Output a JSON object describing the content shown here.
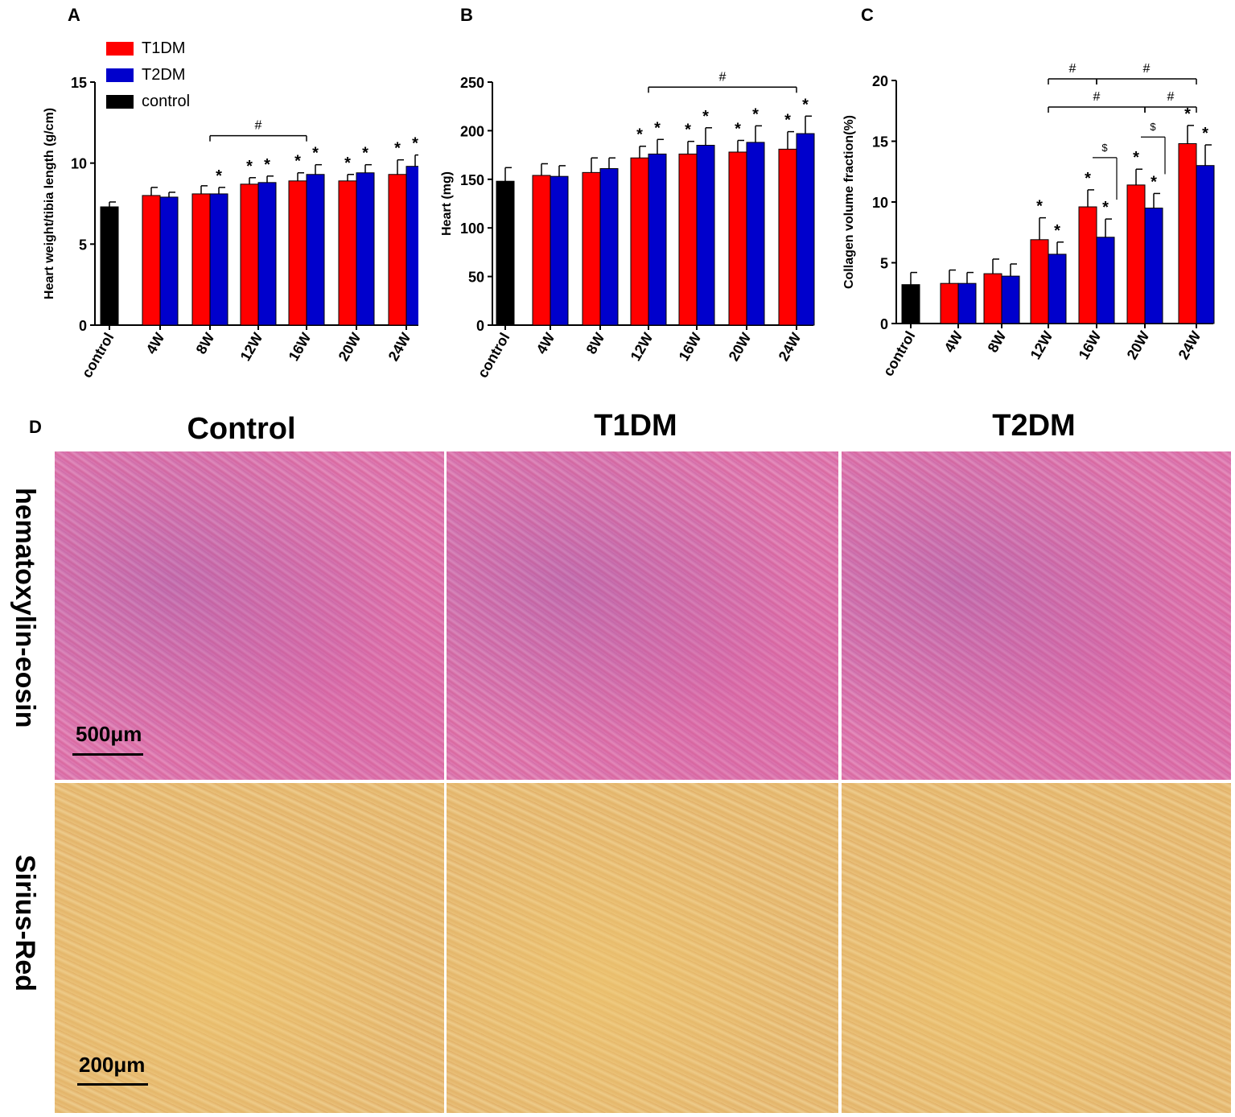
{
  "panel_labels": [
    "A",
    "B",
    "C",
    "D"
  ],
  "legend": [
    {
      "label": "T1DM",
      "color": "#ff0000"
    },
    {
      "label": "T2DM",
      "color": "#0000cc"
    },
    {
      "label": "control",
      "color": "#000000"
    }
  ],
  "chart_data": [
    {
      "type": "bar",
      "panel": "A",
      "categories": [
        "control",
        "4W",
        "8W",
        "12W",
        "16W",
        "20W",
        "24W"
      ],
      "ylabel": "Heart weight/tibia length (g/cm)",
      "ylim": [
        0,
        15
      ],
      "yticks": [
        "0",
        "5",
        "10",
        "15"
      ],
      "control": {
        "value": 7.3,
        "error": 0.3
      },
      "series": [
        {
          "name": "T1DM",
          "color": "#ff0000",
          "values": [
            null,
            8.0,
            8.1,
            8.7,
            8.9,
            8.9,
            9.3
          ],
          "errors": [
            null,
            0.5,
            0.5,
            0.4,
            0.5,
            0.4,
            0.9
          ]
        },
        {
          "name": "T2DM",
          "color": "#0000cc",
          "values": [
            null,
            7.9,
            8.1,
            8.8,
            9.3,
            9.4,
            9.8
          ],
          "errors": [
            null,
            0.3,
            0.4,
            0.4,
            0.6,
            0.5,
            0.7
          ]
        }
      ],
      "stars": [
        [
          2,
          1
        ],
        [
          3,
          0
        ],
        [
          3,
          1
        ],
        [
          4,
          0
        ],
        [
          4,
          1
        ],
        [
          5,
          0
        ],
        [
          5,
          1
        ],
        [
          6,
          0
        ],
        [
          6,
          1
        ]
      ],
      "brackets": [
        {
          "symbol": "#",
          "from": 2,
          "to": 4
        }
      ]
    },
    {
      "type": "bar",
      "panel": "B",
      "categories": [
        "control",
        "4W",
        "8W",
        "12W",
        "16W",
        "20W",
        "24W"
      ],
      "ylabel": "Heart (mg)",
      "ylim": [
        0,
        250
      ],
      "yticks": [
        "0",
        "50",
        "100",
        "150",
        "200",
        "250"
      ],
      "control": {
        "value": 148,
        "error": 14
      },
      "series": [
        {
          "name": "T1DM",
          "color": "#ff0000",
          "values": [
            null,
            154,
            157,
            172,
            176,
            178,
            181
          ],
          "errors": [
            null,
            12,
            15,
            12,
            13,
            12,
            18
          ]
        },
        {
          "name": "T2DM",
          "color": "#0000cc",
          "values": [
            null,
            153,
            161,
            176,
            185,
            188,
            197
          ],
          "errors": [
            null,
            11,
            11,
            15,
            18,
            17,
            18
          ]
        }
      ],
      "stars": [
        [
          3,
          0
        ],
        [
          3,
          1
        ],
        [
          4,
          0
        ],
        [
          4,
          1
        ],
        [
          5,
          0
        ],
        [
          5,
          1
        ],
        [
          6,
          0
        ],
        [
          6,
          1
        ]
      ],
      "brackets": [
        {
          "symbol": "#",
          "from": 3,
          "to": 6
        }
      ]
    },
    {
      "type": "bar",
      "panel": "C",
      "categories": [
        "control",
        "4W",
        "8W",
        "12W",
        "16W",
        "20W",
        "24W"
      ],
      "ylabel": "Collagen volume fraction(%)",
      "ylim": [
        0,
        20
      ],
      "yticks": [
        "0",
        "5",
        "10",
        "15",
        "20"
      ],
      "control": {
        "value": 3.2,
        "error": 1.0
      },
      "series": [
        {
          "name": "T1DM",
          "color": "#ff0000",
          "values": [
            null,
            3.3,
            4.1,
            6.9,
            9.6,
            11.4,
            14.8
          ],
          "errors": [
            null,
            1.1,
            1.2,
            1.8,
            1.4,
            1.3,
            1.5
          ]
        },
        {
          "name": "T2DM",
          "color": "#0000cc",
          "values": [
            null,
            3.3,
            3.9,
            5.7,
            7.1,
            9.5,
            13.0
          ],
          "errors": [
            null,
            0.9,
            1.0,
            1.0,
            1.5,
            1.2,
            1.7
          ]
        }
      ],
      "stars": [
        [
          3,
          0
        ],
        [
          3,
          1
        ],
        [
          4,
          0
        ],
        [
          4,
          1
        ],
        [
          5,
          0
        ],
        [
          5,
          1
        ],
        [
          6,
          0
        ],
        [
          6,
          1
        ]
      ],
      "brackets": [
        {
          "symbol": "#",
          "from": 3,
          "to": 4
        },
        {
          "symbol": "#",
          "from": 4,
          "to": 6
        },
        {
          "symbol": "#",
          "from": 3,
          "to": 5
        },
        {
          "symbol": "#",
          "from": 5,
          "to": 6
        }
      ],
      "dollar_brackets": [
        {
          "symbol": "$",
          "group": 4
        },
        {
          "symbol": "$",
          "group": 5
        }
      ]
    }
  ],
  "histology": {
    "columns": [
      "Control",
      "T1DM",
      "T2DM"
    ],
    "rows": [
      "hematoxylin-eosin",
      "Sirius-Red"
    ],
    "scalebars": [
      "500μm",
      "200μm"
    ]
  }
}
